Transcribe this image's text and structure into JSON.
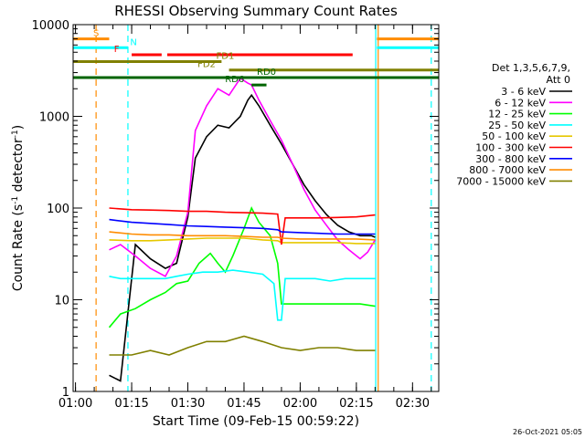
{
  "chart_data": {
    "type": "line",
    "title": "RHESSI Observing Summary Count Rates",
    "xlabel": "Start Time (09-Feb-15 00:59:22)",
    "ylabel": "Count Rate (s⁻¹ detector⁻¹)",
    "ylabel_main": "Count Rate (s",
    "ylabel_sup1": "-1",
    "ylabel_mid": " detector",
    "ylabel_sup2": "-1",
    "ylabel_end": ")",
    "y_scale": "log",
    "ylim": [
      1,
      10000
    ],
    "xlim": [
      "00:59:22",
      "02:37:00"
    ],
    "x_ticks": [
      "01:00",
      "01:15",
      "01:30",
      "01:45",
      "02:00",
      "02:15",
      "02:30"
    ],
    "y_ticks": [
      "1",
      "10",
      "100",
      "1000",
      "10000"
    ],
    "footer": "26-Oct-2021 05:05",
    "legend": {
      "header1": "Det 1,3,5,6,7,9,",
      "header2": "Att 0",
      "placement": "right"
    },
    "series": [
      {
        "name": "3 - 6 keV",
        "color": "#000000",
        "points": [
          [
            "01:09",
            1.5
          ],
          [
            "01:12",
            1.3
          ],
          [
            "01:16",
            40
          ],
          [
            "01:20",
            28
          ],
          [
            "01:24",
            22
          ],
          [
            "01:27",
            25
          ],
          [
            "01:30",
            80
          ],
          [
            "01:32",
            350
          ],
          [
            "01:35",
            600
          ],
          [
            "01:38",
            800
          ],
          [
            "01:41",
            750
          ],
          [
            "01:44",
            1000
          ],
          [
            "01:46",
            1500
          ],
          [
            "01:47",
            1700
          ],
          [
            "01:49",
            1300
          ],
          [
            "01:52",
            800
          ],
          [
            "01:55",
            500
          ],
          [
            "01:58",
            300
          ],
          [
            "02:01",
            180
          ],
          [
            "02:04",
            120
          ],
          [
            "02:07",
            85
          ],
          [
            "02:10",
            65
          ],
          [
            "02:13",
            55
          ],
          [
            "02:16",
            50
          ],
          [
            "02:19",
            50
          ],
          [
            "02:20",
            48
          ]
        ]
      },
      {
        "name": "6 - 12 keV",
        "color": "#ff00ff",
        "points": [
          [
            "01:09",
            35
          ],
          [
            "01:12",
            40
          ],
          [
            "01:16",
            30
          ],
          [
            "01:20",
            22
          ],
          [
            "01:24",
            18
          ],
          [
            "01:27",
            30
          ],
          [
            "01:30",
            90
          ],
          [
            "01:32",
            700
          ],
          [
            "01:35",
            1300
          ],
          [
            "01:38",
            2000
          ],
          [
            "01:41",
            1700
          ],
          [
            "01:44",
            2600
          ],
          [
            "01:46",
            2300
          ],
          [
            "01:47",
            2200
          ],
          [
            "01:49",
            1500
          ],
          [
            "01:52",
            900
          ],
          [
            "01:55",
            550
          ],
          [
            "01:58",
            300
          ],
          [
            "02:01",
            160
          ],
          [
            "02:04",
            95
          ],
          [
            "02:07",
            65
          ],
          [
            "02:10",
            45
          ],
          [
            "02:13",
            35
          ],
          [
            "02:16",
            28
          ],
          [
            "02:18",
            33
          ],
          [
            "02:20",
            45
          ]
        ]
      },
      {
        "name": "12 - 25 keV",
        "color": "#00ff00",
        "points": [
          [
            "01:09",
            5
          ],
          [
            "01:12",
            7
          ],
          [
            "01:16",
            8
          ],
          [
            "01:20",
            10
          ],
          [
            "01:24",
            12
          ],
          [
            "01:27",
            15
          ],
          [
            "01:30",
            16
          ],
          [
            "01:33",
            25
          ],
          [
            "01:36",
            32
          ],
          [
            "01:38",
            25
          ],
          [
            "01:40",
            20
          ],
          [
            "01:42",
            30
          ],
          [
            "01:45",
            60
          ],
          [
            "01:47",
            100
          ],
          [
            "01:49",
            70
          ],
          [
            "01:52",
            50
          ],
          [
            "01:54",
            25
          ],
          [
            "01:55",
            9
          ],
          [
            "01:58",
            9
          ],
          [
            "02:01",
            9
          ],
          [
            "02:04",
            9
          ],
          [
            "02:07",
            9
          ],
          [
            "02:10",
            9
          ],
          [
            "02:13",
            9
          ],
          [
            "02:16",
            9
          ],
          [
            "02:20",
            8.5
          ]
        ]
      },
      {
        "name": "25 - 50 keV",
        "color": "#00ffff",
        "points": [
          [
            "01:09",
            18
          ],
          [
            "01:12",
            17
          ],
          [
            "01:16",
            17
          ],
          [
            "01:20",
            17
          ],
          [
            "01:24",
            17
          ],
          [
            "01:27",
            18
          ],
          [
            "01:30",
            19
          ],
          [
            "01:34",
            20
          ],
          [
            "01:38",
            20
          ],
          [
            "01:42",
            21
          ],
          [
            "01:46",
            20
          ],
          [
            "01:50",
            19
          ],
          [
            "01:53",
            15
          ],
          [
            "01:54",
            6
          ],
          [
            "01:55",
            6
          ],
          [
            "01:56",
            17
          ],
          [
            "02:00",
            17
          ],
          [
            "02:04",
            17
          ],
          [
            "02:08",
            16
          ],
          [
            "02:12",
            17
          ],
          [
            "02:16",
            17
          ],
          [
            "02:20",
            17
          ]
        ]
      },
      {
        "name": "50 - 100 keV",
        "color": "#e6c800",
        "points": [
          [
            "01:09",
            45
          ],
          [
            "01:15",
            44
          ],
          [
            "01:20",
            44
          ],
          [
            "01:25",
            45
          ],
          [
            "01:30",
            46
          ],
          [
            "01:35",
            47
          ],
          [
            "01:40",
            47
          ],
          [
            "01:45",
            47
          ],
          [
            "01:50",
            45
          ],
          [
            "01:54",
            44
          ],
          [
            "01:55",
            42
          ],
          [
            "02:00",
            42
          ],
          [
            "02:05",
            42
          ],
          [
            "02:10",
            42
          ],
          [
            "02:15",
            41
          ],
          [
            "02:20",
            41
          ]
        ]
      },
      {
        "name": "100 - 300 keV",
        "color": "#ff0000",
        "points": [
          [
            "01:09",
            100
          ],
          [
            "01:15",
            96
          ],
          [
            "01:20",
            95
          ],
          [
            "01:25",
            94
          ],
          [
            "01:30",
            92
          ],
          [
            "01:35",
            92
          ],
          [
            "01:40",
            90
          ],
          [
            "01:45",
            89
          ],
          [
            "01:50",
            88
          ],
          [
            "01:54",
            86
          ],
          [
            "01:55",
            40
          ],
          [
            "01:56",
            78
          ],
          [
            "02:00",
            78
          ],
          [
            "02:05",
            78
          ],
          [
            "02:10",
            79
          ],
          [
            "02:15",
            80
          ],
          [
            "02:20",
            84
          ]
        ]
      },
      {
        "name": "300 - 800 keV",
        "color": "#0000ff",
        "points": [
          [
            "01:09",
            75
          ],
          [
            "01:15",
            70
          ],
          [
            "01:20",
            68
          ],
          [
            "01:25",
            66
          ],
          [
            "01:30",
            64
          ],
          [
            "01:35",
            63
          ],
          [
            "01:40",
            62
          ],
          [
            "01:45",
            61
          ],
          [
            "01:50",
            60
          ],
          [
            "01:54",
            58
          ],
          [
            "01:55",
            55
          ],
          [
            "02:00",
            54
          ],
          [
            "02:05",
            53
          ],
          [
            "02:10",
            52
          ],
          [
            "02:15",
            52
          ],
          [
            "02:20",
            52
          ]
        ]
      },
      {
        "name": "800 - 7000 keV",
        "color": "#ff8c00",
        "points": [
          [
            "01:09",
            55
          ],
          [
            "01:15",
            52
          ],
          [
            "01:20",
            51
          ],
          [
            "01:25",
            51
          ],
          [
            "01:30",
            50
          ],
          [
            "01:35",
            50
          ],
          [
            "01:40",
            50
          ],
          [
            "01:45",
            49
          ],
          [
            "01:50",
            48
          ],
          [
            "01:54",
            48
          ],
          [
            "01:55",
            47
          ],
          [
            "02:00",
            46
          ],
          [
            "02:05",
            46
          ],
          [
            "02:10",
            46
          ],
          [
            "02:15",
            46
          ],
          [
            "02:20",
            45
          ]
        ]
      },
      {
        "name": "7000 - 15000 keV",
        "color": "#808000",
        "points": [
          [
            "01:09",
            2.5
          ],
          [
            "01:15",
            2.5
          ],
          [
            "01:20",
            2.8
          ],
          [
            "01:25",
            2.5
          ],
          [
            "01:30",
            3
          ],
          [
            "01:35",
            3.5
          ],
          [
            "01:40",
            3.5
          ],
          [
            "01:45",
            4
          ],
          [
            "01:50",
            3.5
          ],
          [
            "01:55",
            3
          ],
          [
            "02:00",
            2.8
          ],
          [
            "02:05",
            3
          ],
          [
            "02:10",
            3
          ],
          [
            "02:15",
            2.8
          ],
          [
            "02:20",
            2.8
          ]
        ]
      }
    ],
    "flags": [
      {
        "label": "S",
        "color": "#ff8c00",
        "y": 7000,
        "segments": [
          [
            "00:59:22",
            "01:09:00"
          ],
          [
            "02:20:30",
            "02:37:00"
          ]
        ],
        "label_at": "01:05:30"
      },
      {
        "label": "N",
        "color": "#00ffff",
        "y": 5600,
        "segments": [
          [
            "00:59:22",
            "01:14:00"
          ],
          [
            "02:20:30",
            "02:37:00"
          ]
        ],
        "label_at": "01:15:30"
      },
      {
        "label": "F",
        "color": "#ff0000",
        "y": 4700,
        "segments": [
          [
            "01:15:00",
            "01:23:00"
          ],
          [
            "01:24:30",
            "02:14:00"
          ]
        ],
        "label_at": "01:11:00"
      },
      {
        "label": "FD1",
        "color": "#808000",
        "y": 3950,
        "segments": [
          [
            "00:59:22",
            "01:39:00"
          ]
        ],
        "label_at": "01:40:00"
      },
      {
        "label": "FD2",
        "color": "#808000",
        "y": 3200,
        "segments": [
          [
            "01:41:00",
            "02:37:00"
          ]
        ],
        "label_at": "01:35:00"
      },
      {
        "label": "RD0",
        "color": "#006400",
        "y": 2650,
        "segments": [
          [
            "00:59:22",
            "02:37:00"
          ]
        ],
        "label_at": "01:51:00"
      },
      {
        "label": "RD6",
        "color": "#006400",
        "y": 2200,
        "segments": [
          [
            "01:47:00",
            "01:51:00"
          ]
        ],
        "label_at": "01:42:30"
      }
    ],
    "vlines": [
      {
        "time": "01:05:30",
        "color": "#ff8c00",
        "style": "dashed"
      },
      {
        "time": "01:14:00",
        "color": "#00ffff",
        "style": "dashed"
      },
      {
        "time": "02:20:10",
        "color": "#00ffff",
        "style": "solid"
      },
      {
        "time": "02:20:50",
        "color": "#ff8c00",
        "style": "solid"
      },
      {
        "time": "02:35:00",
        "color": "#00ffff",
        "style": "dashed"
      }
    ],
    "grid": false
  }
}
